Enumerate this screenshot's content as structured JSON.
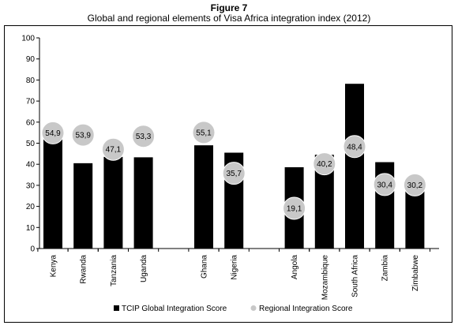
{
  "chart_data": {
    "type": "bar",
    "title": "Figure 7",
    "subtitle": "Global and regional elements of Visa Africa integration index (2012)",
    "categories": [
      "Kenya",
      "Rwanda",
      "Tanzania",
      "Uganda",
      "Ghana",
      "Nigeria",
      "Angola",
      "Mozambique",
      "South Africa",
      "Zambia",
      "Zimbabwe"
    ],
    "groups": [
      [
        "Kenya",
        "Rwanda",
        "Tanzania",
        "Uganda"
      ],
      [
        "Ghana",
        "Nigeria"
      ],
      [
        "Angola",
        "Mozambique",
        "South Africa",
        "Zambia",
        "Zimbabwe"
      ]
    ],
    "series": [
      {
        "name": "TCIP Global Integration Score",
        "type": "bar",
        "color": "#000000",
        "values": [
          54.9,
          40.5,
          43.5,
          43.3,
          49,
          45.5,
          38.6,
          44.5,
          78.2,
          41,
          30.2
        ]
      },
      {
        "name": "Regional Integration Score",
        "type": "scatter",
        "color": "#c8c8c8",
        "values": [
          54.9,
          53.9,
          47.1,
          53.3,
          55.1,
          35.7,
          19.1,
          40.2,
          48.4,
          30.4,
          30.2
        ],
        "labels": [
          "54,9",
          "53,9",
          "47,1",
          "53,3",
          "55,1",
          "35,7",
          "19,1",
          "40,2",
          "48,4",
          "30,4",
          "30,2"
        ]
      }
    ],
    "yticks": [
      "0",
      "10",
      "20",
      "30",
      "40",
      "50",
      "60",
      "70",
      "80",
      "90",
      "100"
    ],
    "ylim": [
      0,
      100
    ],
    "legend_position": "bottom",
    "grid": false
  }
}
